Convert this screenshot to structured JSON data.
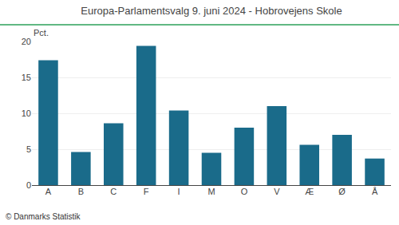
{
  "chart_data": {
    "type": "bar",
    "title": "Europa-Parlamentsvalg 9. juni 2024 - Hobrovejens Skole",
    "categories": [
      "A",
      "B",
      "C",
      "F",
      "I",
      "M",
      "O",
      "V",
      "Æ",
      "Ø",
      "Å"
    ],
    "values": [
      17.4,
      4.6,
      8.6,
      19.4,
      10.4,
      4.5,
      8.0,
      11.0,
      5.6,
      7.0,
      3.7
    ],
    "color": "#1a6b8a",
    "ylim": [
      0,
      20
    ],
    "yticks": [
      0,
      5,
      10,
      15,
      20
    ],
    "ylabel": "Pct.",
    "annotations": [
      "© Danmarks Statistik"
    ],
    "grid": true
  }
}
